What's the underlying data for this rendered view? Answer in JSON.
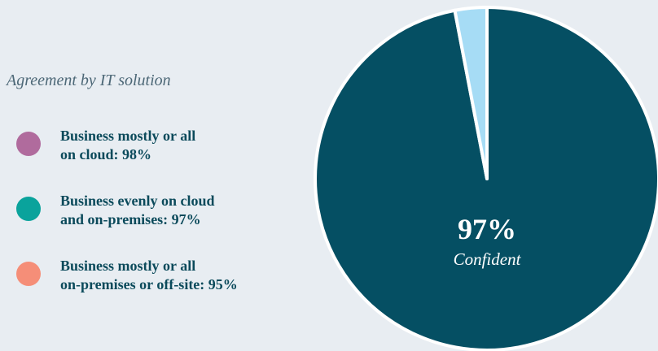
{
  "chart_data": {
    "type": "pie",
    "categories": [
      "Confident",
      null
    ],
    "values": [
      97,
      3
    ],
    "value_labels": [
      "97%",
      null
    ],
    "colors": [
      "#054f63",
      "#a6dcf5"
    ],
    "subtitle": "Agreement by IT solution",
    "breakdown": [
      {
        "lines": [
          "Business mostly or all",
          "on cloud: 98%"
        ],
        "color": "#b06b9d"
      },
      {
        "lines": [
          "Business evenly on cloud",
          "and on-premises: 97%"
        ],
        "color": "#0aa39c"
      },
      {
        "lines": [
          "Business mostly or all",
          "on-premises or off-site: 95%"
        ],
        "color": "#f58e78"
      }
    ]
  }
}
